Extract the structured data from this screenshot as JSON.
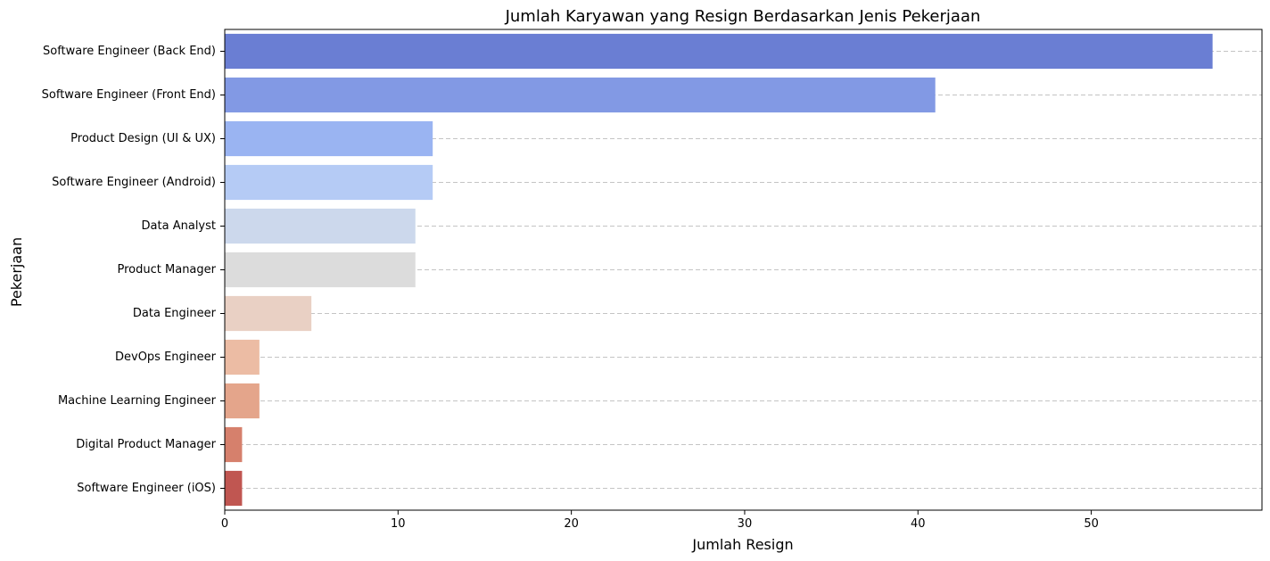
{
  "chart_data": {
    "type": "bar",
    "orientation": "horizontal",
    "title": "Jumlah Karyawan yang Resign Berdasarkan Jenis Pekerjaan",
    "xlabel": "Jumlah Resign",
    "ylabel": "Pekerjaan",
    "categories": [
      "Software Engineer (Back End)",
      "Software Engineer (Front End)",
      "Product Design (UI & UX)",
      "Software Engineer (Android)",
      "Data Analyst",
      "Product Manager",
      "Data Engineer",
      "DevOps Engineer",
      "Machine Learning Engineer",
      "Digital Product Manager",
      "Software Engineer (iOS)"
    ],
    "values": [
      57,
      41,
      12,
      12,
      11,
      11,
      5,
      2,
      2,
      1,
      1
    ],
    "colors": [
      "#6a7ed3",
      "#8299e4",
      "#9ab4f2",
      "#b5cbf5",
      "#ccd8ec",
      "#dcdcdc",
      "#e9d0c4",
      "#ecbca4",
      "#e4a58b",
      "#d6806c",
      "#c05651"
    ],
    "xlim": [
      0,
      59.85
    ],
    "xticks": [
      0,
      10,
      20,
      30,
      40,
      50
    ],
    "grid": "dashed horizontal lines"
  }
}
